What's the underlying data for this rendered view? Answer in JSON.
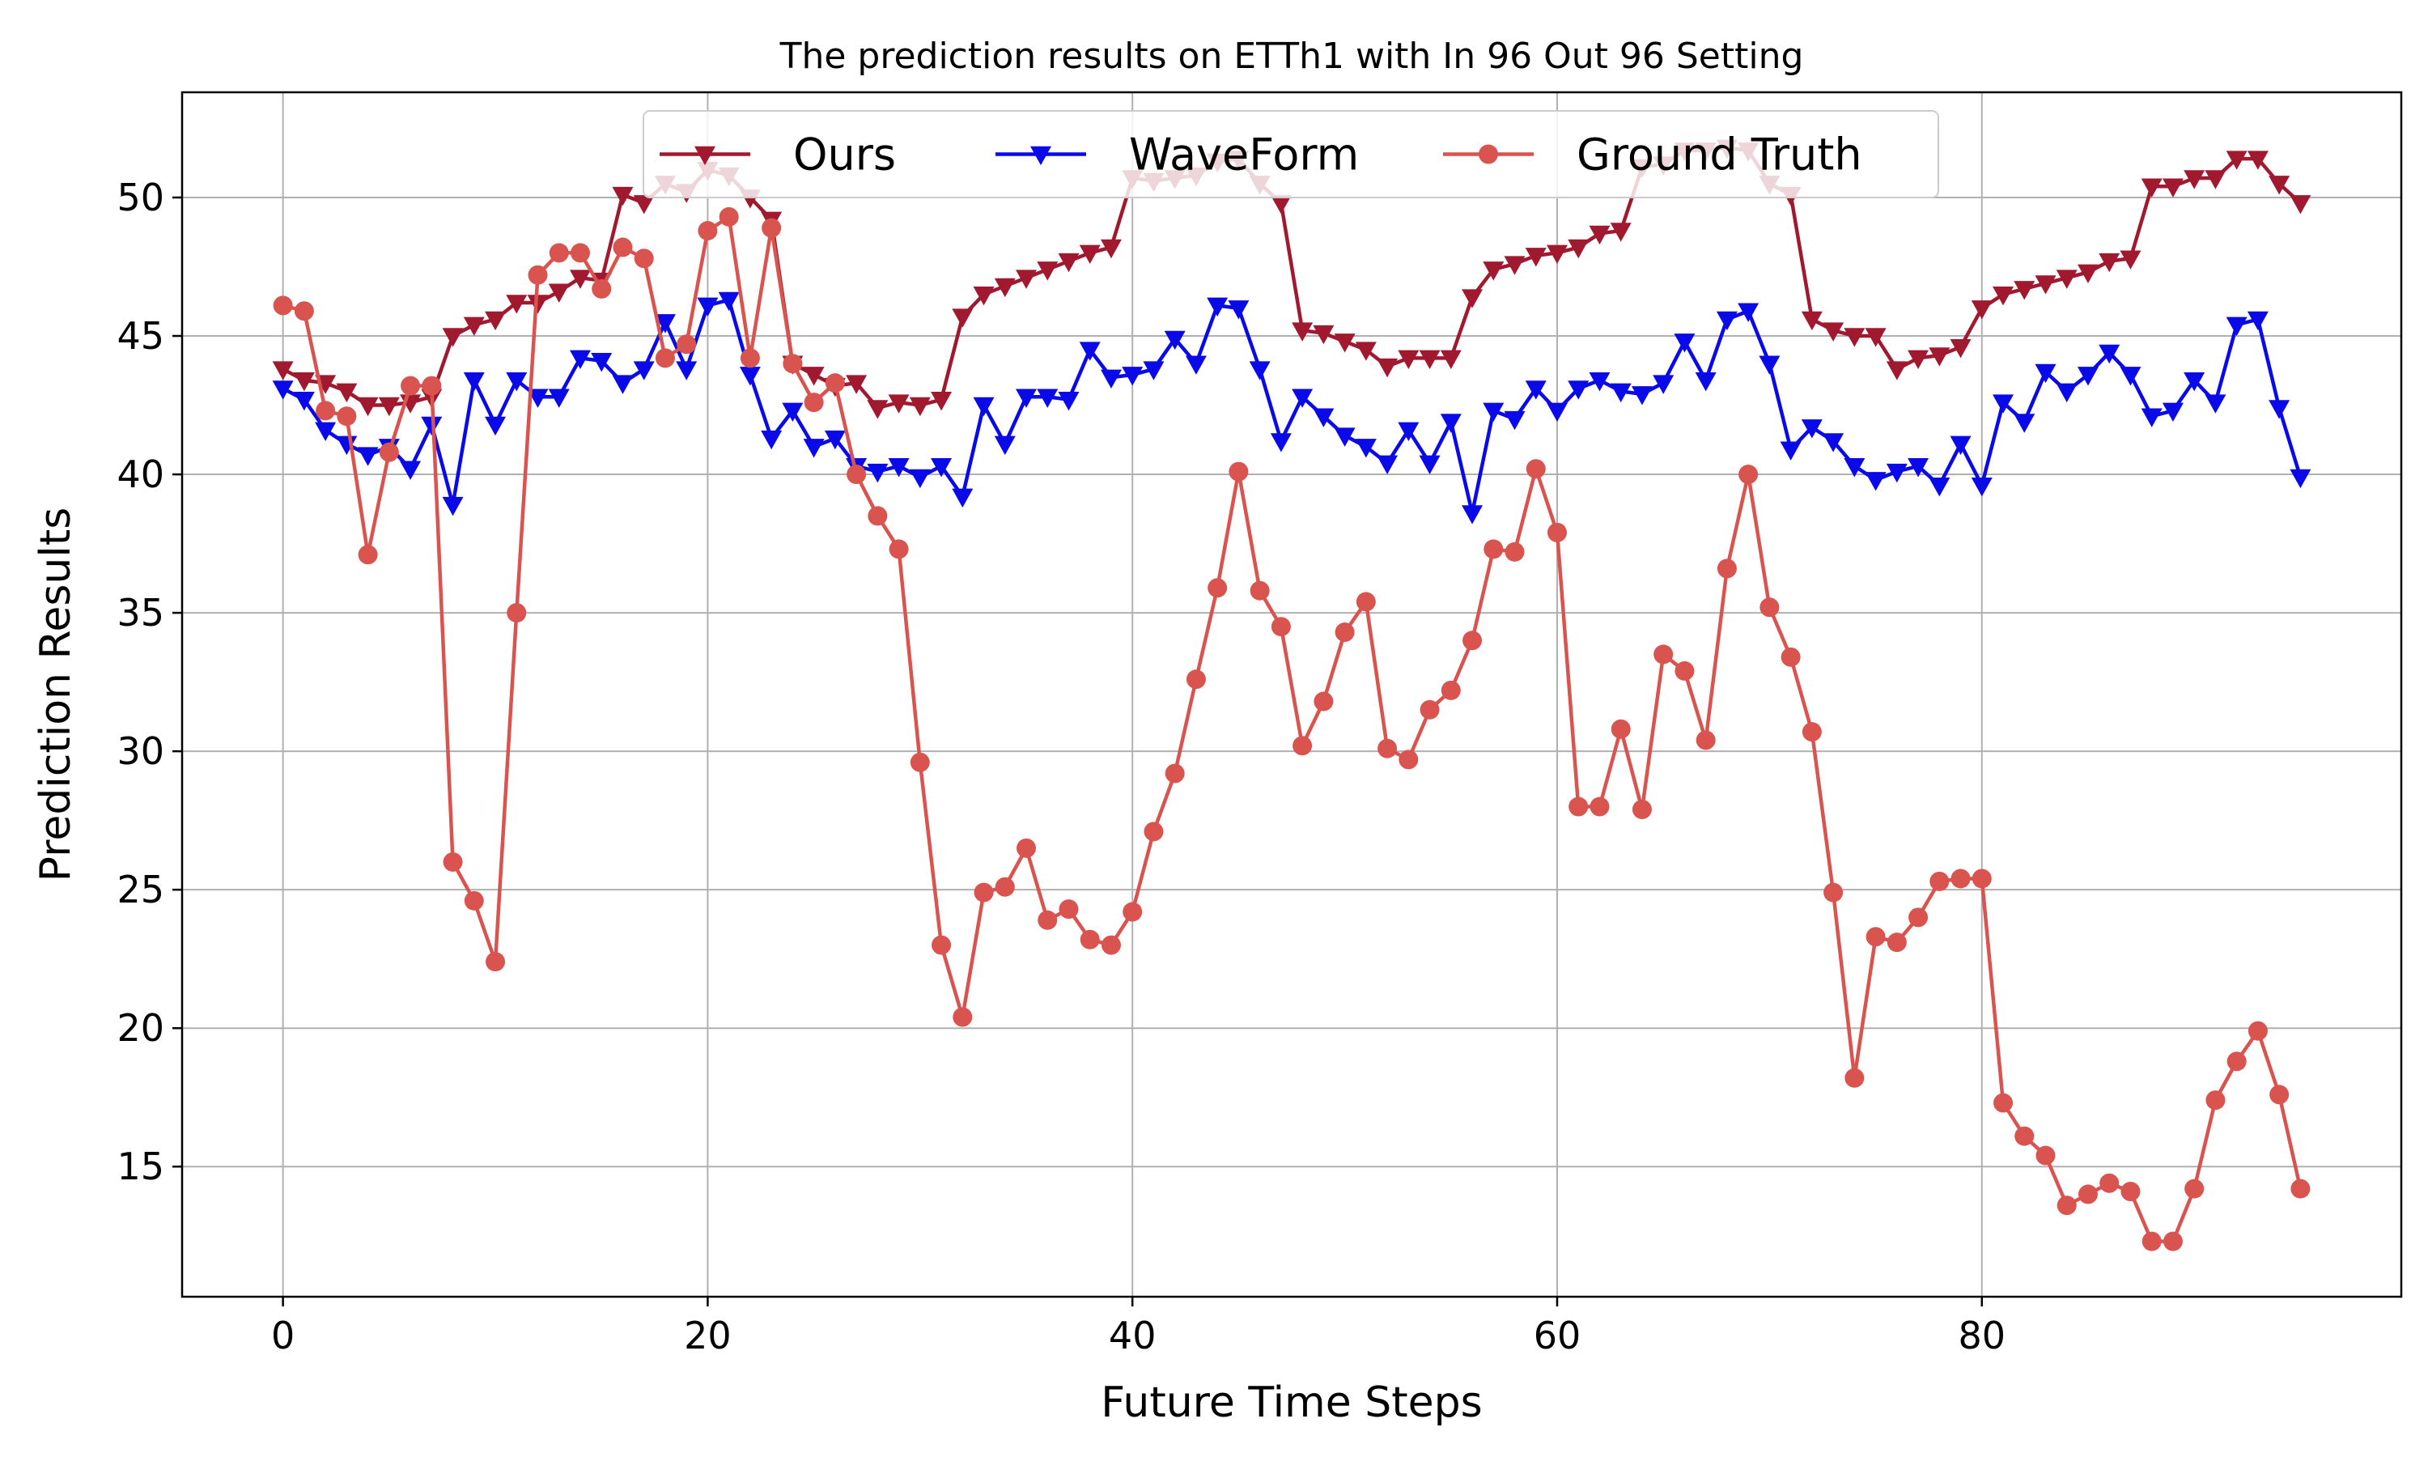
{
  "chart_data": {
    "type": "line",
    "title": "The prediction results on ETTh1 with In 96 Out 96 Setting",
    "xlabel": "Future Time Steps",
    "ylabel": "Prediction Results",
    "xlim": [
      -4.75,
      99.75
    ],
    "ylim": [
      10.3,
      53.8
    ],
    "xticks": [
      0,
      20,
      40,
      60,
      80
    ],
    "yticks": [
      15,
      20,
      25,
      30,
      35,
      40,
      45,
      50
    ],
    "grid": true,
    "legend_position": "top-center",
    "series": [
      {
        "name": "Ours",
        "color": "#a1192f",
        "marker": "triangle-down",
        "values": [
          43.8,
          43.4,
          43.3,
          43.0,
          42.5,
          42.5,
          42.6,
          42.8,
          45.0,
          45.4,
          45.6,
          46.2,
          46.2,
          46.6,
          47.1,
          47.0,
          50.1,
          49.8,
          50.5,
          50.2,
          51.0,
          50.8,
          50.0,
          49.2,
          44.0,
          43.6,
          43.2,
          43.3,
          42.4,
          42.6,
          42.5,
          42.7,
          45.7,
          46.5,
          46.8,
          47.1,
          47.4,
          47.7,
          48.0,
          48.2,
          50.7,
          50.6,
          50.7,
          50.8,
          51.3,
          51.4,
          50.5,
          49.8,
          45.2,
          45.1,
          44.8,
          44.5,
          43.9,
          44.2,
          44.2,
          44.2,
          46.4,
          47.4,
          47.6,
          47.9,
          48.0,
          48.2,
          48.7,
          48.8,
          51.1,
          51.2,
          51.7,
          51.7,
          51.8,
          51.7,
          50.5,
          50.1,
          45.6,
          45.2,
          45.0,
          45.0,
          43.8,
          44.2,
          44.3,
          44.6,
          46.0,
          46.5,
          46.7,
          46.9,
          47.1,
          47.3,
          47.7,
          47.8,
          50.4,
          50.4,
          50.7,
          50.7,
          51.4,
          51.4,
          50.5,
          49.8
        ]
      },
      {
        "name": "WaveForm",
        "color": "#0a0ae8",
        "marker": "triangle-down",
        "values": [
          43.1,
          42.7,
          41.6,
          41.1,
          40.7,
          41.0,
          40.2,
          41.8,
          38.9,
          43.4,
          41.8,
          43.4,
          42.8,
          42.8,
          44.2,
          44.1,
          43.3,
          43.8,
          45.5,
          43.8,
          46.1,
          46.3,
          43.6,
          41.3,
          42.3,
          41.0,
          41.3,
          40.3,
          40.1,
          40.3,
          39.9,
          40.3,
          39.2,
          42.5,
          41.1,
          42.8,
          42.8,
          42.7,
          44.5,
          43.5,
          43.6,
          43.8,
          44.9,
          44.0,
          46.1,
          46.0,
          43.8,
          41.2,
          42.8,
          42.1,
          41.4,
          41.0,
          40.4,
          41.6,
          40.4,
          41.9,
          38.6,
          42.3,
          42.0,
          43.1,
          42.3,
          43.1,
          43.4,
          43.0,
          42.9,
          43.3,
          44.8,
          43.4,
          45.6,
          45.9,
          44.0,
          40.9,
          41.7,
          41.2,
          40.3,
          39.8,
          40.1,
          40.3,
          39.6,
          41.1,
          39.6,
          42.6,
          41.9,
          43.7,
          43.0,
          43.6,
          44.4,
          43.6,
          42.1,
          42.3,
          43.4,
          42.6,
          45.4,
          45.6,
          42.4,
          39.9
        ]
      },
      {
        "name": "Ground Truth",
        "color": "#d9534f",
        "marker": "circle",
        "values": [
          46.1,
          45.9,
          42.3,
          42.1,
          37.1,
          40.8,
          43.2,
          43.2,
          26.0,
          24.6,
          22.4,
          35.0,
          47.2,
          48.0,
          48.0,
          46.7,
          48.2,
          47.8,
          44.2,
          44.7,
          48.8,
          49.3,
          44.2,
          48.9,
          44.0,
          42.6,
          43.3,
          40.0,
          38.5,
          37.3,
          29.6,
          23.0,
          20.4,
          24.9,
          25.1,
          26.5,
          23.9,
          24.3,
          23.2,
          23.0,
          24.2,
          27.1,
          29.2,
          32.6,
          35.9,
          40.1,
          35.8,
          34.5,
          30.2,
          31.8,
          34.3,
          35.4,
          30.1,
          29.7,
          31.5,
          32.2,
          34.0,
          37.3,
          37.2,
          40.2,
          37.9,
          28.0,
          28.0,
          30.8,
          27.9,
          33.5,
          32.9,
          30.4,
          36.6,
          40.0,
          35.2,
          33.4,
          30.7,
          24.9,
          18.2,
          23.3,
          23.1,
          24.0,
          25.3,
          25.4,
          25.4,
          17.3,
          16.1,
          15.4,
          13.6,
          14.0,
          14.4,
          14.1,
          12.3,
          12.3,
          14.2,
          17.4,
          18.8,
          19.9,
          17.6,
          14.2
        ]
      }
    ]
  }
}
